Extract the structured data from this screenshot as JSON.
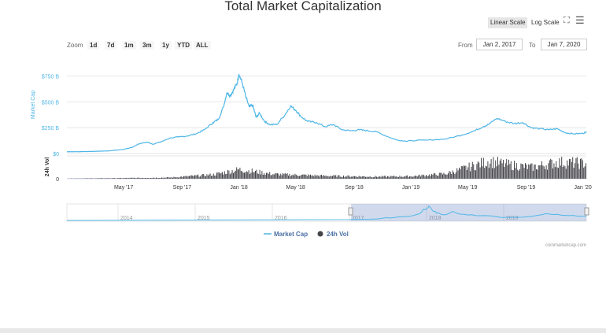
{
  "chart_data": {
    "type": "line",
    "title": "Total Market Capitalization",
    "ylabel_top": "Market Cap",
    "ylabel_bottom": "24h Vol",
    "y_ticks": [
      {
        "value": 0,
        "label": "$0"
      },
      {
        "value": 250,
        "label": "$250 B"
      },
      {
        "value": 500,
        "label": "$500 B"
      },
      {
        "value": 750,
        "label": "$750 B"
      }
    ],
    "ylim": [
      0,
      800
    ],
    "vol_ticks": [
      {
        "value": 0,
        "label": "0"
      }
    ],
    "x_ticks": [
      {
        "value": 2017.33,
        "label": "May '17"
      },
      {
        "value": 2017.67,
        "label": "Sep '17"
      },
      {
        "value": 2018.0,
        "label": "Jan '18"
      },
      {
        "value": 2018.33,
        "label": "May '18"
      },
      {
        "value": 2018.67,
        "label": "Sep '18"
      },
      {
        "value": 2019.0,
        "label": "Jan '19"
      },
      {
        "value": 2019.33,
        "label": "May '19"
      },
      {
        "value": 2019.67,
        "label": "Sep '19"
      },
      {
        "value": 2020.0,
        "label": "Jan '20"
      }
    ],
    "xlim": [
      2017.0,
      2020.02
    ],
    "series": [
      {
        "name": "Market Cap",
        "color": "#4fb6e6",
        "x": [
          2017.0,
          2017.08,
          2017.16,
          2017.25,
          2017.33,
          2017.38,
          2017.42,
          2017.47,
          2017.5,
          2017.55,
          2017.6,
          2017.65,
          2017.7,
          2017.75,
          2017.8,
          2017.85,
          2017.88,
          2017.91,
          2017.93,
          2017.95,
          2017.97,
          2017.99,
          2018.0,
          2018.02,
          2018.04,
          2018.06,
          2018.08,
          2018.1,
          2018.12,
          2018.15,
          2018.18,
          2018.22,
          2018.27,
          2018.3,
          2018.33,
          2018.36,
          2018.4,
          2018.45,
          2018.5,
          2018.55,
          2018.6,
          2018.65,
          2018.7,
          2018.75,
          2018.8,
          2018.87,
          2018.92,
          2018.97,
          2019.0,
          2019.1,
          2019.2,
          2019.3,
          2019.37,
          2019.42,
          2019.45,
          2019.5,
          2019.55,
          2019.6,
          2019.65,
          2019.7,
          2019.75,
          2019.8,
          2019.85,
          2019.9,
          2019.95,
          2020.0,
          2020.02
        ],
        "values": [
          17,
          18,
          21,
          26,
          40,
          60,
          95,
          110,
          90,
          115,
          150,
          160,
          170,
          190,
          230,
          300,
          330,
          450,
          590,
          560,
          620,
          680,
          770,
          680,
          550,
          450,
          470,
          350,
          390,
          310,
          280,
          280,
          380,
          460,
          420,
          360,
          310,
          300,
          260,
          280,
          230,
          220,
          230,
          220,
          210,
          160,
          130,
          120,
          125,
          130,
          140,
          180,
          220,
          260,
          280,
          340,
          310,
          290,
          300,
          250,
          240,
          230,
          240,
          200,
          190,
          195,
          210
        ]
      }
    ],
    "volume": {
      "name": "24h Vol",
      "color": "#434348",
      "x": [
        2017.0,
        2017.3,
        2017.6,
        2017.85,
        2018.0,
        2018.2,
        2018.5,
        2018.8,
        2019.0,
        2019.2,
        2019.35,
        2019.45,
        2019.55,
        2019.7,
        2019.85,
        2020.0
      ],
      "values": [
        1,
        3,
        6,
        20,
        45,
        22,
        14,
        10,
        12,
        24,
        60,
        85,
        70,
        55,
        80,
        75
      ]
    },
    "navigator": {
      "tick_labels": [
        "2014",
        "2015",
        "2016",
        "2017",
        "2018",
        "2019"
      ]
    },
    "legend_placement": "bottom-center",
    "credit": "coinmarketcap.com"
  },
  "toolbar": {
    "linear_scale": "Linear Scale",
    "log_scale": "Log Scale"
  },
  "zoom": {
    "label": "Zoom",
    "options": [
      "1d",
      "7d",
      "1m",
      "3m",
      "1y",
      "YTD",
      "ALL"
    ]
  },
  "range": {
    "from_label": "From",
    "from_value": "Jan 2, 2017",
    "to_label": "To",
    "to_value": "Jan 7, 2020"
  }
}
